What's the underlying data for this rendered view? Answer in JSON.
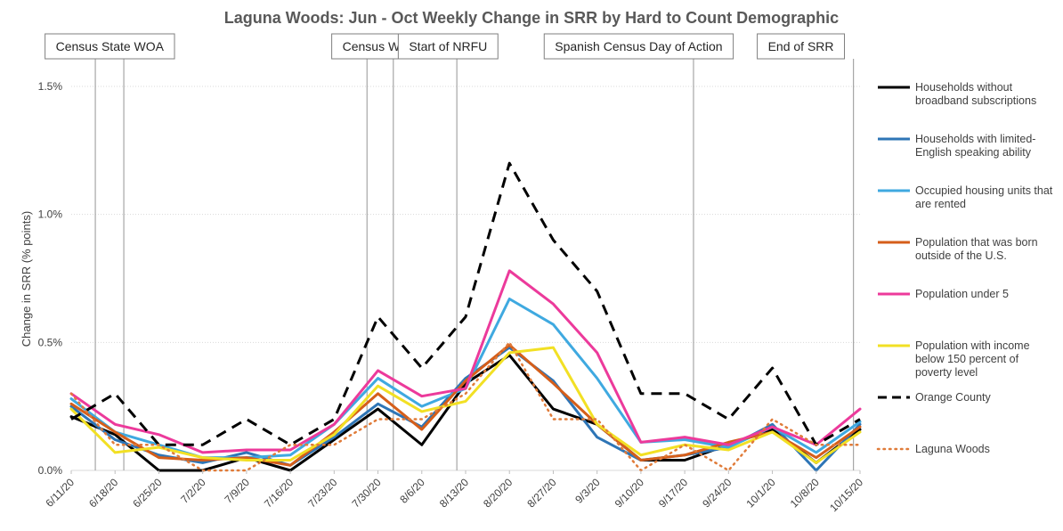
{
  "chart_data": {
    "type": "line",
    "title": "Laguna Woods: Jun - Oct Weekly Change in SRR by Hard to Count Demographic",
    "ylabel": "Change in SRR (% points)",
    "xlabel": "",
    "ylim": [
      0,
      1.5
    ],
    "yticks": [
      "0.0%",
      "0.5%",
      "1.0%",
      "1.5%"
    ],
    "categories": [
      "6/11/20",
      "6/18/20",
      "6/25/20",
      "7/2/20",
      "7/9/20",
      "7/16/20",
      "7/23/20",
      "7/30/20",
      "8/6/20",
      "8/13/20",
      "8/20/20",
      "8/27/20",
      "9/3/20",
      "9/10/20",
      "9/17/20",
      "9/24/20",
      "10/1/20",
      "10/8/20",
      "10/15/20"
    ],
    "events": [
      {
        "label": "Census State WOA",
        "x": 0.55
      },
      {
        "label": "Census State WOA",
        "x": 1.2
      },
      {
        "label": "Census WOA",
        "x": 6.75
      },
      {
        "label": "Census WOA",
        "x": 7.35
      },
      {
        "label": "Start of NRFU",
        "x": 8.8
      },
      {
        "label": "Spanish Census Day of Action",
        "x": 14.2
      },
      {
        "label": "End of SRR",
        "x": 17.85
      }
    ],
    "boxes": [
      {
        "label": "Census State WOA",
        "x": 0.88
      },
      {
        "label": "Census WOA",
        "x": 7.05
      },
      {
        "label": "Start of NRFU",
        "x": 8.6
      },
      {
        "label": "Spanish Census Day of Action",
        "x": 12.95
      },
      {
        "label": "End of SRR",
        "x": 16.65
      }
    ],
    "legend_position": "right",
    "gridlines": "horizontal, light dotted",
    "series": [
      {
        "name": "Households without broadband subscriptions",
        "lines": [
          "Households without",
          "broadband subscriptions"
        ],
        "color": "#000000",
        "style": "solid",
        "values": [
          0.21,
          0.14,
          0.0,
          0.0,
          0.05,
          0.0,
          0.12,
          0.24,
          0.1,
          0.34,
          0.45,
          0.24,
          0.18,
          0.04,
          0.04,
          0.1,
          0.16,
          0.03,
          0.16
        ]
      },
      {
        "name": "Households with limited-English speaking ability",
        "lines": [
          "Households with limited-",
          "English speaking ability"
        ],
        "color": "#2E75B6",
        "style": "solid",
        "values": [
          0.25,
          0.12,
          0.06,
          0.03,
          0.07,
          0.02,
          0.13,
          0.26,
          0.17,
          0.36,
          0.48,
          0.35,
          0.13,
          0.04,
          0.06,
          0.09,
          0.18,
          0.0,
          0.18
        ]
      },
      {
        "name": "Occupied housing units that are rented",
        "lines": [
          "Occupied housing units that",
          "are rented"
        ],
        "color": "#3FA9E0",
        "style": "solid",
        "values": [
          0.28,
          0.15,
          0.1,
          0.05,
          0.05,
          0.06,
          0.18,
          0.36,
          0.25,
          0.32,
          0.67,
          0.57,
          0.36,
          0.11,
          0.12,
          0.09,
          0.17,
          0.07,
          0.19
        ]
      },
      {
        "name": "Population that was born outside of the U.S.",
        "lines": [
          "Population that was born",
          "outside of the U.S."
        ],
        "color": "#D55E1A",
        "style": "solid",
        "values": [
          0.26,
          0.15,
          0.05,
          0.04,
          0.05,
          0.02,
          0.15,
          0.3,
          0.16,
          0.35,
          0.49,
          0.34,
          0.18,
          0.04,
          0.06,
          0.11,
          0.15,
          0.05,
          0.17
        ]
      },
      {
        "name": "Population under 5",
        "lines": [
          "Population under 5"
        ],
        "color": "#EC3A9B",
        "style": "solid",
        "values": [
          0.3,
          0.18,
          0.14,
          0.07,
          0.08,
          0.08,
          0.18,
          0.39,
          0.29,
          0.32,
          0.78,
          0.65,
          0.46,
          0.11,
          0.13,
          0.1,
          0.17,
          0.1,
          0.24
        ]
      },
      {
        "name": "Population with income below 150 percent of poverty level",
        "lines": [
          "Population with income",
          "below 150 percent of",
          "poverty level"
        ],
        "color": "#F2E024",
        "style": "solid",
        "values": [
          0.24,
          0.07,
          0.09,
          0.05,
          0.04,
          0.04,
          0.14,
          0.33,
          0.23,
          0.27,
          0.46,
          0.48,
          0.18,
          0.06,
          0.1,
          0.08,
          0.15,
          0.03,
          0.15
        ]
      },
      {
        "name": "Orange County",
        "lines": [
          "Orange County"
        ],
        "color": "#000000",
        "style": "dash",
        "values": [
          0.2,
          0.3,
          0.1,
          0.1,
          0.2,
          0.1,
          0.2,
          0.6,
          0.4,
          0.6,
          1.2,
          0.9,
          0.7,
          0.3,
          0.3,
          0.2,
          0.4,
          0.1,
          0.2
        ]
      },
      {
        "name": "Laguna Woods",
        "lines": [
          "Laguna Woods"
        ],
        "color": "#E07B39",
        "style": "dot",
        "values": [
          0.3,
          0.1,
          0.1,
          0.0,
          0.0,
          0.1,
          0.1,
          0.2,
          0.2,
          0.3,
          0.5,
          0.2,
          0.2,
          0.0,
          0.1,
          0.0,
          0.2,
          0.1,
          0.1
        ]
      }
    ]
  }
}
